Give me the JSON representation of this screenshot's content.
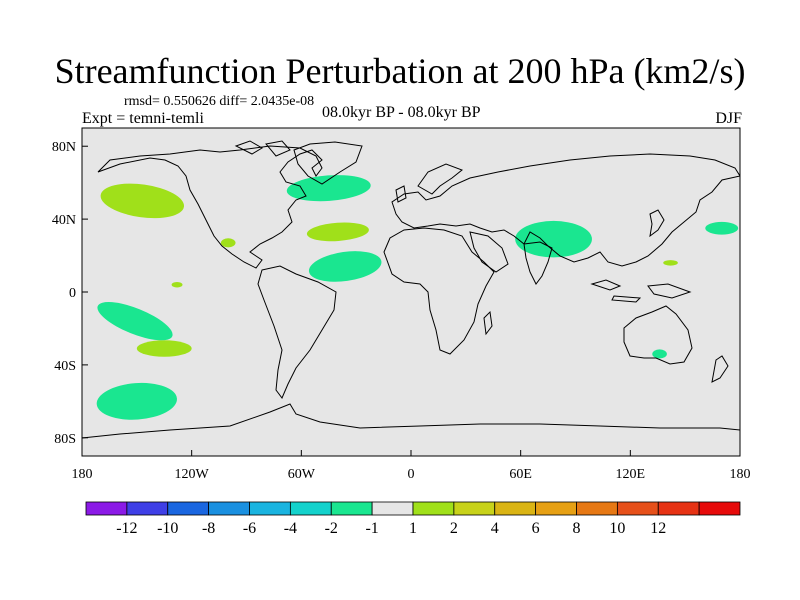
{
  "chart_data": {
    "type": "contour-map",
    "title": "Streamfunction Perturbation at 200 hPa (km2/s)",
    "stats": "rmsd= 0.550626 diff= 2.0435e-08",
    "experiment": "Expt = temni-temli",
    "period": "08.0kyr BP - 08.0kyr BP",
    "season": "DJF",
    "lon_range": [
      -180,
      180
    ],
    "lat_range": [
      -90,
      90
    ],
    "x_ticks": [
      {
        "value": -180,
        "label": "180"
      },
      {
        "value": -120,
        "label": "120W"
      },
      {
        "value": -60,
        "label": "60W"
      },
      {
        "value": 0,
        "label": "0"
      },
      {
        "value": 60,
        "label": "60E"
      },
      {
        "value": 120,
        "label": "120E"
      },
      {
        "value": 180,
        "label": "180"
      }
    ],
    "y_ticks": [
      {
        "value": 80,
        "label": "80N"
      },
      {
        "value": 40,
        "label": "40N"
      },
      {
        "value": 0,
        "label": "0"
      },
      {
        "value": -40,
        "label": "40S"
      },
      {
        "value": -80,
        "label": "80S"
      }
    ],
    "anomalies": [
      {
        "lon": -147,
        "lat": 50,
        "rlon": 23,
        "rlat": 9,
        "rot": 8,
        "band": "1 to 2"
      },
      {
        "lon": -100,
        "lat": 27,
        "rlon": 4,
        "rlat": 2.5,
        "rot": 0,
        "band": "1 to 2"
      },
      {
        "lon": -128,
        "lat": 4,
        "rlon": 3,
        "rlat": 1.5,
        "rot": 0,
        "band": "1 to 2"
      },
      {
        "lon": -40,
        "lat": 33,
        "rlon": 17,
        "rlat": 5,
        "rot": -4,
        "band": "1 to 2"
      },
      {
        "lon": 142,
        "lat": 16,
        "rlon": 4,
        "rlat": 1.5,
        "rot": 0,
        "band": "1 to 2"
      },
      {
        "lon": -135,
        "lat": -31,
        "rlon": 15,
        "rlat": 4.5,
        "rot": 0,
        "band": "1 to 2"
      },
      {
        "lon": -45,
        "lat": 57,
        "rlon": 23,
        "rlat": 7,
        "rot": -4,
        "band": "-1 to -2"
      },
      {
        "lon": -36,
        "lat": 14,
        "rlon": 20,
        "rlat": 8,
        "rot": -8,
        "band": "-1 to -2"
      },
      {
        "lon": 78,
        "lat": 29,
        "rlon": 21,
        "rlat": 10,
        "rot": 0,
        "band": "-1 to -2"
      },
      {
        "lon": 170,
        "lat": 35,
        "rlon": 9,
        "rlat": 3.5,
        "rot": 0,
        "band": "-1 to -2"
      },
      {
        "lon": 136,
        "lat": -34,
        "rlon": 4,
        "rlat": 2.5,
        "rot": 0,
        "band": "-1 to -2"
      },
      {
        "lon": -151,
        "lat": -16,
        "rlon": 22,
        "rlat": 7,
        "rot": 22,
        "band": "-1 to -2"
      },
      {
        "lon": -150,
        "lat": -60,
        "rlon": 22,
        "rlat": 10,
        "rot": -4,
        "band": "-1 to -2"
      }
    ],
    "colorbar": {
      "colors": [
        "#8b1ae6",
        "#3f3fe6",
        "#1a66e0",
        "#1a90e0",
        "#1ab4e0",
        "#14d2cc",
        "#1ae690",
        "#e6e6e6",
        "#a0e01a",
        "#c8d21a",
        "#dab414",
        "#e6a014",
        "#e67814",
        "#e6501a",
        "#e63214",
        "#e60a0a"
      ],
      "labels": [
        "-12",
        "-10",
        "-8",
        "-6",
        "-4",
        "-2",
        "-1",
        "1",
        "2",
        "4",
        "6",
        "8",
        "10",
        "12"
      ]
    }
  }
}
